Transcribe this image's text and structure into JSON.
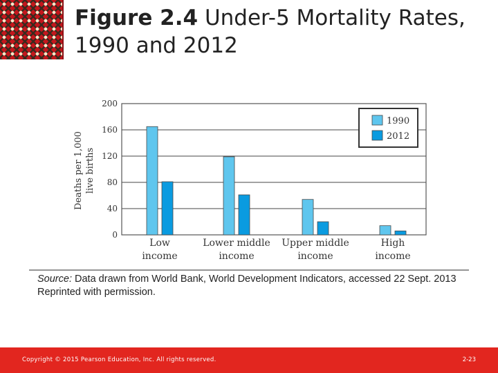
{
  "header": {
    "title_bold": "Figure 2.4",
    "title_rest": " Under-5 Mortality Rates, 1990 and 2012"
  },
  "chart_data": {
    "type": "bar",
    "categories": [
      [
        "Low",
        "income"
      ],
      [
        "Lower middle",
        "income"
      ],
      [
        "Upper middle",
        "income"
      ],
      [
        "High",
        "income"
      ]
    ],
    "series": [
      {
        "name": "1990",
        "values": [
          165,
          119,
          54,
          14
        ],
        "color": "#5fc6ee"
      },
      {
        "name": "2012",
        "values": [
          81,
          61,
          20,
          6
        ],
        "color": "#0a9be0"
      }
    ],
    "ylabel_lines": [
      "Deaths per 1,000",
      "live births"
    ],
    "ylim": [
      0,
      200
    ],
    "yticks": [
      0,
      40,
      80,
      120,
      160,
      200
    ],
    "grid": true,
    "legend": "top-right"
  },
  "source": {
    "label": "Source:",
    "text": " Data drawn from World Bank, World Development Indicators, accessed 22 Sept. 2013",
    "line2": "Reprinted with permission."
  },
  "footer": {
    "copyright": "Copyright © 2015 Pearson Education, Inc. All rights reserved.",
    "page": "2-23"
  }
}
